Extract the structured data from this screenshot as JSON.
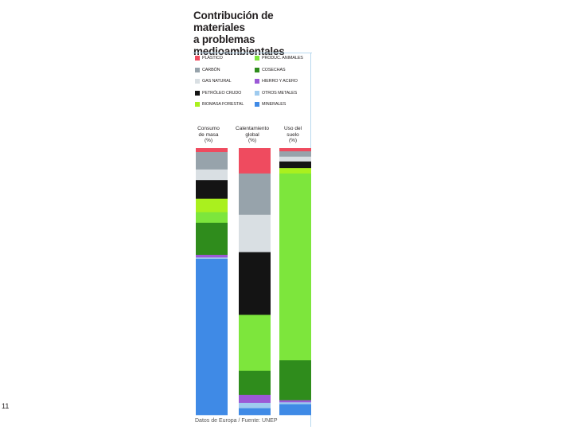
{
  "slide_number": "11",
  "card": {
    "title_lines": [
      "Contribución de materiales",
      "a problemas",
      "medioambientales"
    ],
    "source": "Datos de Europa / Fuente: UNEP"
  },
  "legend": [
    {
      "label": "PLÁSTICO",
      "color": "#ef4b5f"
    },
    {
      "label": "PRODUC. ANIMALES",
      "color": "#7de63c"
    },
    {
      "label": "CARBÓN",
      "color": "#97a3ab"
    },
    {
      "label": "COSECHAS",
      "color": "#2f8c1c"
    },
    {
      "label": "GAS NATURAL",
      "color": "#d9dfe3"
    },
    {
      "label": "HIERRO Y ACERO",
      "color": "#9b59d6"
    },
    {
      "label": "PETRÓLEO CRUDO",
      "color": "#141414"
    },
    {
      "label": "OTROS METALES",
      "color": "#9fcbef"
    },
    {
      "label": "BIOMASA FORESTAL",
      "color": "#aaf01e"
    },
    {
      "label": "MINERALES",
      "color": "#3f8ae6"
    }
  ],
  "chart_data": {
    "type": "bar",
    "stacked": true,
    "orientation": "vertical",
    "unit": "%",
    "ylim": [
      0,
      100
    ],
    "categories": [
      [
        "Consumo",
        "de masa",
        "(%)"
      ],
      [
        "Calentamiento",
        "global",
        "(%)"
      ],
      [
        "Uso del",
        "suelo",
        "(%)"
      ]
    ],
    "series": [
      {
        "name": "PLÁSTICO",
        "color": "#ef4b5f",
        "values": [
          1.5,
          9.5,
          1.2
        ]
      },
      {
        "name": "CARBÓN",
        "color": "#97a3ab",
        "values": [
          6.5,
          15.5,
          2.0
        ]
      },
      {
        "name": "GAS NATURAL",
        "color": "#d9dfe3",
        "values": [
          4.0,
          14.0,
          1.8
        ]
      },
      {
        "name": "PETRÓLEO CRUDO",
        "color": "#141414",
        "values": [
          7.0,
          23.5,
          2.5
        ]
      },
      {
        "name": "BIOMASA FORESTAL",
        "color": "#aaf01e",
        "values": [
          5.0,
          0,
          2.0
        ]
      },
      {
        "name": "PRODUC. ANIMALES",
        "color": "#7de63c",
        "values": [
          4.0,
          21.0,
          70.0
        ]
      },
      {
        "name": "COSECHAS",
        "color": "#2f8c1c",
        "values": [
          12.0,
          9.0,
          15.0
        ]
      },
      {
        "name": "HIERRO Y ACERO",
        "color": "#9b59d6",
        "values": [
          1.0,
          3.0,
          0.8
        ]
      },
      {
        "name": "OTROS METALES",
        "color": "#9fcbef",
        "values": [
          0.5,
          2.0,
          0.7
        ]
      },
      {
        "name": "MINERALES",
        "color": "#3f8ae6",
        "values": [
          58.5,
          2.5,
          4.0
        ]
      }
    ]
  }
}
